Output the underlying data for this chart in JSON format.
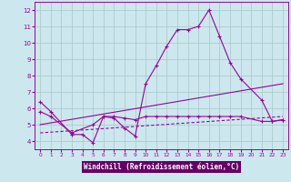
{
  "xlabel": "Windchill (Refroidissement éolien,°C)",
  "background_color": "#cce8ee",
  "line_color": "#990099",
  "grid_color": "#aacccc",
  "xlim": [
    -0.5,
    23.5
  ],
  "ylim": [
    3.5,
    12.5
  ],
  "xticks": [
    0,
    1,
    2,
    3,
    4,
    5,
    6,
    7,
    8,
    9,
    10,
    11,
    12,
    13,
    14,
    15,
    16,
    17,
    18,
    19,
    20,
    21,
    22,
    23
  ],
  "yticks": [
    4,
    5,
    6,
    7,
    8,
    9,
    10,
    11,
    12
  ],
  "line1_x": [
    0,
    1,
    3,
    4,
    5,
    6,
    7,
    8,
    9,
    10,
    11,
    12,
    13,
    14,
    15,
    16,
    17,
    18,
    19,
    21,
    22,
    23
  ],
  "line1_y": [
    6.4,
    5.8,
    4.4,
    4.4,
    3.9,
    5.5,
    5.4,
    4.8,
    4.3,
    7.5,
    8.6,
    9.8,
    10.8,
    10.8,
    11.0,
    12.0,
    10.4,
    8.8,
    7.8,
    6.5,
    5.2,
    5.3
  ],
  "line2_x": [
    0,
    1,
    3,
    5,
    6,
    7,
    8,
    9,
    10,
    11,
    12,
    13,
    14,
    15,
    16,
    17,
    18,
    19,
    21,
    22,
    23
  ],
  "line2_y": [
    5.8,
    5.5,
    4.5,
    5.0,
    5.5,
    5.5,
    5.4,
    5.3,
    5.5,
    5.5,
    5.5,
    5.5,
    5.5,
    5.5,
    5.5,
    5.5,
    5.5,
    5.5,
    5.2,
    5.2,
    5.3
  ],
  "line3_x": [
    0,
    23
  ],
  "line3_y": [
    5.0,
    7.5
  ],
  "line4_x": [
    0,
    23
  ],
  "line4_y": [
    4.5,
    5.5
  ],
  "xlabel_bg": "#660066",
  "xlabel_fg": "#ffffff"
}
